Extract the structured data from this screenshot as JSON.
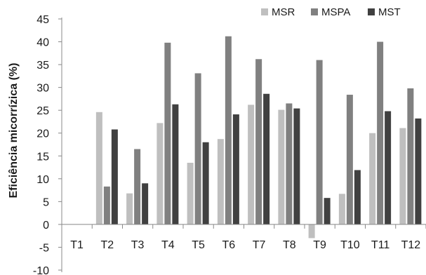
{
  "chart_data": {
    "type": "bar",
    "ylabel": "Eficiência micorrízica (%)",
    "ylim": [
      -10,
      45
    ],
    "yticks": [
      -10,
      -5,
      0,
      5,
      10,
      15,
      20,
      25,
      30,
      35,
      40,
      45
    ],
    "legend_position": "top-right",
    "grid": false,
    "categories": [
      "T1",
      "T2",
      "T3",
      "T4",
      "T5",
      "T6",
      "T7",
      "T8",
      "T9",
      "T10",
      "T11",
      "T12"
    ],
    "series": [
      {
        "name": "MSR",
        "color": "#bfbfbf",
        "values": [
          0,
          24.6,
          6.8,
          22.2,
          13.5,
          18.7,
          26.2,
          25.1,
          -3.0,
          6.7,
          20.0,
          21.1
        ]
      },
      {
        "name": "MSPA",
        "color": "#808080",
        "values": [
          0,
          8.3,
          16.5,
          39.8,
          33.1,
          41.2,
          36.2,
          26.5,
          36.0,
          28.4,
          40.0,
          29.8
        ]
      },
      {
        "name": "MST",
        "color": "#404040",
        "values": [
          0,
          20.8,
          9.0,
          26.3,
          18.0,
          24.1,
          28.6,
          25.4,
          5.8,
          11.9,
          24.8,
          23.2
        ]
      }
    ]
  }
}
